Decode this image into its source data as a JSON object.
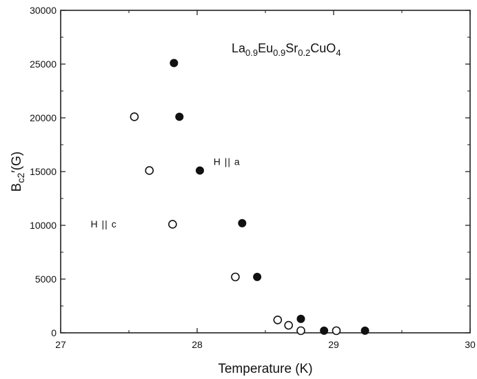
{
  "chart_data": {
    "type": "scatter",
    "title": "",
    "xlabel": "Temperature (K)",
    "ylabel": {
      "main": "B",
      "sub": "c2",
      "rest": "′(G)"
    },
    "xlim": [
      27,
      30
    ],
    "ylim": [
      0,
      30000
    ],
    "xticks": [
      27,
      28,
      29,
      30
    ],
    "yticks": [
      0,
      5000,
      10000,
      15000,
      20000,
      25000,
      30000
    ],
    "grid": false,
    "compound": [
      {
        "text": "La",
        "sub": false
      },
      {
        "text": "0.9",
        "sub": true
      },
      {
        "text": "Eu",
        "sub": false
      },
      {
        "text": "0.9",
        "sub": true
      },
      {
        "text": "Sr",
        "sub": false
      },
      {
        "text": "0.2",
        "sub": true
      },
      {
        "text": "CuO",
        "sub": false
      },
      {
        "text": "4",
        "sub": true
      }
    ],
    "series": [
      {
        "name": "H || a",
        "marker": "filled-circle",
        "points": [
          [
            27.83,
            25100
          ],
          [
            27.87,
            20100
          ],
          [
            28.02,
            15100
          ],
          [
            28.33,
            10200
          ],
          [
            28.44,
            5200
          ],
          [
            28.76,
            1300
          ],
          [
            28.93,
            200
          ],
          [
            29.23,
            200
          ]
        ]
      },
      {
        "name": "H || c",
        "marker": "open-circle",
        "points": [
          [
            27.54,
            20100
          ],
          [
            27.65,
            15100
          ],
          [
            27.82,
            10100
          ],
          [
            28.28,
            5200
          ],
          [
            28.59,
            1200
          ],
          [
            28.67,
            700
          ],
          [
            28.76,
            200
          ],
          [
            29.02,
            200
          ]
        ]
      }
    ],
    "annotations": [
      {
        "text": "H || a",
        "x": 28.12,
        "y": 15600
      },
      {
        "text": "H || c",
        "x": 27.22,
        "y": 9800
      }
    ],
    "colors": {
      "axis": "#111111",
      "marker": "#111111",
      "background": "#ffffff"
    }
  }
}
